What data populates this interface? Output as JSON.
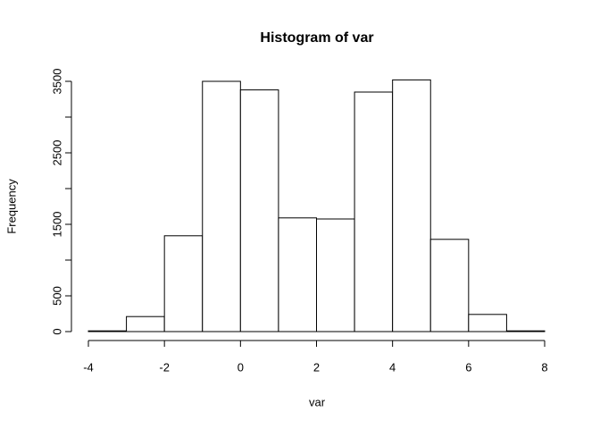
{
  "chart_data": {
    "type": "histogram",
    "title": "Histogram of var",
    "x_label": "var",
    "y_label": "Frequency",
    "bins": [
      -4,
      -3,
      -2,
      -1,
      0,
      1,
      2,
      3,
      4,
      5,
      6,
      7,
      8
    ],
    "values": [
      10,
      210,
      1340,
      3500,
      3380,
      1590,
      1575,
      3350,
      3520,
      1290,
      240,
      10
    ],
    "color": "#ffffff",
    "xlim": [
      -4,
      8
    ],
    "xticks": [
      -4,
      -2,
      0,
      2,
      4,
      6,
      8
    ],
    "ylim": [
      0,
      3500
    ],
    "yticks": [
      0,
      500,
      1500,
      2500,
      3500
    ],
    "y_minor_ticks": [
      1000,
      2000,
      3000
    ]
  }
}
